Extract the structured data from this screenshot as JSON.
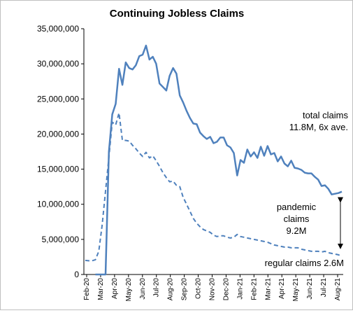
{
  "chart_data": {
    "type": "line",
    "title": "Continuing Jobless Claims",
    "xlabel": "",
    "ylabel": "",
    "ylim": [
      0,
      35000000
    ],
    "yticks": [
      0,
      5000000,
      10000000,
      15000000,
      20000000,
      25000000,
      30000000,
      35000000
    ],
    "ytick_labels": [
      "0",
      "5,000,000",
      "10,000,000",
      "15,000,000",
      "20,000,000",
      "25,000,000",
      "30,000,000",
      "35,000,000"
    ],
    "x_tick_labels": [
      "Feb-20",
      "Mar-20",
      "Apr-20",
      "May-20",
      "Jun-20",
      "Jul-20",
      "Aug-20",
      "Sep-20",
      "Oct-20",
      "Nov-20",
      "Dec-20",
      "Jan-21",
      "Feb-21",
      "Mar-21",
      "Apr-21",
      "May-21",
      "Jun-21",
      "Jul-21",
      "Aug-21"
    ],
    "grid": false,
    "series_color": "#4f81bd",
    "series": [
      {
        "style": "solid",
        "values": [
          null,
          null,
          null,
          0,
          0,
          0,
          0,
          17500000,
          22800000,
          24300000,
          29300000,
          27000000,
          30200000,
          29400000,
          29200000,
          29800000,
          31100000,
          31300000,
          32600000,
          30600000,
          31000000,
          30000000,
          27200000,
          26700000,
          26200000,
          28300000,
          29400000,
          28600000,
          25500000,
          24500000,
          23300000,
          22300000,
          21500000,
          21400000,
          20200000,
          19700000,
          19300000,
          19600000,
          18700000,
          18900000,
          19500000,
          19500000,
          18400000,
          18100000,
          17300000,
          14100000,
          16300000,
          15900000,
          17800000,
          16800000,
          17400000,
          16600000,
          18200000,
          16900000,
          18300000,
          17100000,
          17300000,
          16100000,
          16800000,
          15800000,
          15400000,
          16200000,
          15200000,
          15100000,
          14900000,
          14500000,
          14400000,
          14400000,
          13900000,
          13500000,
          12600000,
          12700000,
          12200000,
          11400000,
          11500000,
          11600000,
          11800000
        ]
      },
      {
        "style": "dashed",
        "values": [
          2000000,
          1950000,
          1950000,
          2100000,
          3300000,
          7000000,
          11900000,
          16700000,
          21700000,
          21300000,
          23000000,
          19100000,
          19100000,
          19000000,
          18400000,
          17900000,
          17300000,
          16800000,
          17400000,
          16600000,
          16900000,
          16200000,
          15400000,
          14500000,
          13800000,
          13200000,
          13300000,
          12700000,
          12500000,
          11000000,
          10000000,
          9000000,
          8000000,
          7300000,
          6800000,
          6400000,
          6200000,
          6000000,
          5600000,
          5400000,
          5500000,
          5500000,
          5300000,
          5200000,
          5300000,
          5700000,
          5400000,
          5300000,
          5200000,
          5100000,
          5000000,
          4900000,
          4800000,
          4700000,
          4600000,
          4400000,
          4200000,
          4100000,
          4000000,
          3900000,
          3900000,
          3800000,
          3800000,
          3800000,
          3600000,
          3500000,
          3400000,
          3300000,
          3300000,
          3300000,
          3200000,
          3300000,
          3100000,
          3000000,
          2900000,
          2800000,
          2600000
        ]
      }
    ],
    "annotations": {
      "total": [
        "total claims",
        "11.8M, 6x ave."
      ],
      "pandemic": [
        "pandemic",
        "claims",
        "9.2M"
      ],
      "regular": "regular claims 2.6M"
    }
  }
}
